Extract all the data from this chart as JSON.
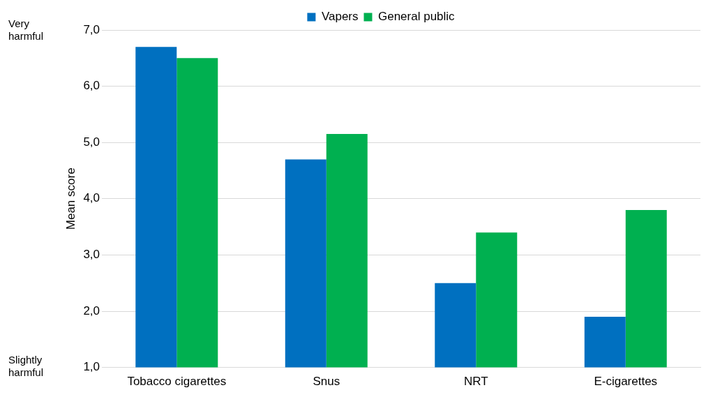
{
  "chart_data": {
    "type": "bar",
    "categories": [
      "Tobacco cigarettes",
      "Snus",
      "NRT",
      "E-cigarettes"
    ],
    "series": [
      {
        "name": "Vapers",
        "color": "#0070c0",
        "values": [
          6.7,
          4.7,
          2.5,
          1.9
        ]
      },
      {
        "name": "General public",
        "color": "#00b050",
        "values": [
          6.5,
          5.15,
          3.4,
          3.8
        ]
      }
    ],
    "ylabel": "Mean score",
    "ylim": [
      1,
      7
    ],
    "yticks": [
      {
        "value": 1,
        "label": "1,0"
      },
      {
        "value": 2,
        "label": "2,0"
      },
      {
        "value": 3,
        "label": "3,0"
      },
      {
        "value": 4,
        "label": "4,0"
      },
      {
        "value": 5,
        "label": "5,0"
      },
      {
        "value": 6,
        "label": "6,0"
      },
      {
        "value": 7,
        "label": "7,0"
      }
    ],
    "annotations": [
      "Very harmful",
      "Slightly harmful"
    ],
    "grid": "y",
    "legend": "top"
  }
}
